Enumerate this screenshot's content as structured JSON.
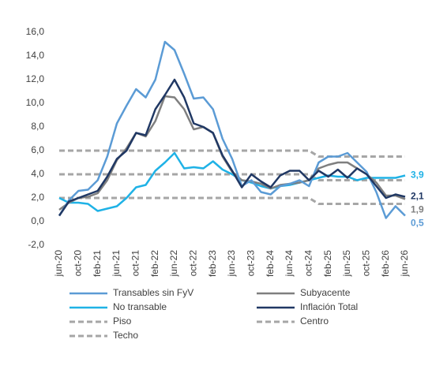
{
  "chart_data": {
    "type": "line",
    "categories": [
      "jun-20",
      null,
      "oct-20",
      null,
      "feb-21",
      null,
      "jun-21",
      null,
      "oct-21",
      null,
      "feb-22",
      null,
      "jun-22",
      null,
      "oct-22",
      null,
      "feb-23",
      null,
      "jun-23",
      null,
      "oct-23",
      null,
      "feb-24",
      null,
      "jun-24",
      null,
      "oct-24",
      null,
      "feb-25",
      null,
      "jun-25",
      null,
      "oct-25",
      null,
      "feb-26",
      null,
      "jun-26"
    ],
    "ylim": [
      -2,
      16
    ],
    "yticks": [
      {
        "value": -2,
        "label": "-2,0"
      },
      {
        "value": 0,
        "label": "0,0"
      },
      {
        "value": 2,
        "label": "2,0"
      },
      {
        "value": 4,
        "label": "4,0"
      },
      {
        "value": 6,
        "label": "6,0"
      },
      {
        "value": 8,
        "label": "8,0"
      },
      {
        "value": 10,
        "label": "10,0"
      },
      {
        "value": 12,
        "label": "12,0"
      },
      {
        "value": 14,
        "label": "14,0"
      },
      {
        "value": 16,
        "label": "16,0"
      }
    ],
    "series": [
      {
        "name": "Transables sin FyV",
        "color": "#5b9bd5",
        "dashed": false,
        "values": [
          0.5,
          1.8,
          2.6,
          2.7,
          3.5,
          5.5,
          8.3,
          9.8,
          11.2,
          10.5,
          12,
          15.2,
          14.5,
          12.5,
          10.4,
          10.5,
          9.5,
          7,
          5.3,
          3,
          3.5,
          2.5,
          2.3,
          3,
          3.2,
          3.5,
          3,
          5,
          5.5,
          5.5,
          5.8,
          5,
          4.2,
          2.5,
          0.3,
          1.3,
          0.5
        ],
        "value_labels": [
          null,
          null,
          null,
          null,
          null,
          null,
          null,
          null,
          null,
          null,
          null,
          null,
          null,
          null,
          null,
          null,
          null,
          null,
          null,
          null,
          null,
          null,
          null,
          null,
          null,
          null,
          null,
          null,
          null,
          null,
          null,
          null,
          null,
          null,
          null,
          null,
          "0,5"
        ]
      },
      {
        "name": "Subyacente",
        "color": "#7f7f7f",
        "dashed": false,
        "values": [
          1,
          1.6,
          2,
          2.1,
          2.4,
          3.5,
          5.2,
          6.2,
          7.5,
          7.2,
          8.5,
          10.6,
          10.5,
          9.5,
          7.8,
          8,
          7.5,
          5.5,
          4.2,
          3.5,
          3.4,
          3.2,
          2.8,
          3.1,
          3.2,
          3.3,
          3.5,
          4.5,
          4.8,
          5,
          5,
          4.5,
          4,
          3.3,
          2.2,
          2.2,
          1.9
        ],
        "value_labels": [
          null,
          null,
          null,
          null,
          null,
          null,
          null,
          null,
          null,
          null,
          null,
          null,
          null,
          null,
          null,
          null,
          null,
          null,
          null,
          null,
          null,
          null,
          null,
          null,
          null,
          null,
          null,
          null,
          null,
          null,
          null,
          null,
          null,
          null,
          null,
          null,
          "1,9"
        ]
      },
      {
        "name": "No transable",
        "color": "#1fb2e6",
        "dashed": false,
        "values": [
          2,
          1.6,
          1.6,
          1.5,
          0.9,
          1.1,
          1.3,
          2,
          2.9,
          3.1,
          4.3,
          5,
          5.8,
          4.5,
          4.6,
          4.5,
          5.1,
          4.4,
          4,
          3.5,
          3.3,
          3,
          2.8,
          3,
          3.1,
          3.3,
          3.5,
          3.7,
          3.9,
          3.8,
          3.8,
          3.5,
          3.7,
          3.7,
          3.7,
          3.7,
          3.9
        ],
        "value_labels": [
          null,
          null,
          null,
          null,
          null,
          null,
          null,
          null,
          null,
          null,
          null,
          null,
          null,
          null,
          null,
          null,
          null,
          null,
          null,
          null,
          null,
          null,
          null,
          null,
          null,
          null,
          null,
          null,
          null,
          null,
          null,
          null,
          null,
          null,
          null,
          null,
          "3,9"
        ]
      },
      {
        "name": "Inflación Total",
        "color": "#203864",
        "dashed": false,
        "values": [
          0.5,
          1.7,
          2,
          2.3,
          2.6,
          3.8,
          5.3,
          6,
          7.5,
          7.3,
          9.5,
          10.7,
          12,
          10.5,
          8.3,
          8,
          7.5,
          5.6,
          4.3,
          2.9,
          4,
          3.4,
          2.9,
          3.9,
          4.3,
          4.3,
          3.5,
          4.3,
          3.8,
          4.4,
          3.7,
          4.5,
          4,
          3,
          2,
          2.3,
          2.1
        ],
        "value_labels": [
          null,
          null,
          null,
          null,
          null,
          null,
          null,
          null,
          null,
          null,
          null,
          null,
          null,
          null,
          null,
          null,
          null,
          null,
          null,
          null,
          null,
          null,
          null,
          null,
          null,
          null,
          null,
          null,
          null,
          null,
          null,
          null,
          null,
          null,
          null,
          null,
          "2,1"
        ]
      },
      {
        "name": "Piso",
        "color": "#a6a6a6",
        "dashed": true,
        "values": [
          2,
          2,
          2,
          2,
          2,
          2,
          2,
          2,
          2,
          2,
          2,
          2,
          2,
          2,
          2,
          2,
          2,
          2,
          2,
          2,
          2,
          2,
          2,
          2,
          2,
          2,
          2,
          1.5,
          1.5,
          1.5,
          1.5,
          1.5,
          1.5,
          1.5,
          1.5,
          1.5,
          1.5
        ]
      },
      {
        "name": "Centro",
        "color": "#a6a6a6",
        "dashed": true,
        "values": [
          4,
          4,
          4,
          4,
          4,
          4,
          4,
          4,
          4,
          4,
          4,
          4,
          4,
          4,
          4,
          4,
          4,
          4,
          4,
          4,
          4,
          4,
          4,
          4,
          4,
          4,
          4,
          3.5,
          3.5,
          3.5,
          3.5,
          3.5,
          3.5,
          3.5,
          3.5,
          3.5,
          3.5
        ]
      },
      {
        "name": "Techo",
        "color": "#a6a6a6",
        "dashed": true,
        "values": [
          6,
          6,
          6,
          6,
          6,
          6,
          6,
          6,
          6,
          6,
          6,
          6,
          6,
          6,
          6,
          6,
          6,
          6,
          6,
          6,
          6,
          6,
          6,
          6,
          6,
          6,
          6,
          5.5,
          5.5,
          5.5,
          5.5,
          5.5,
          5.5,
          5.5,
          5.5,
          5.5,
          5.5
        ]
      }
    ]
  }
}
